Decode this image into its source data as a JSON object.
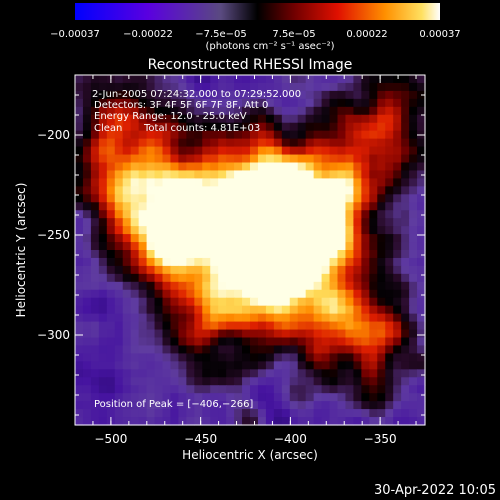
{
  "chart_data": {
    "type": "heatmap",
    "title": "Reconstructed RHESSI Image",
    "xlabel": "Heliocentric X (arcsec)",
    "ylabel": "Heliocentric Y (arcsec)",
    "xlim": [
      -520,
      -325
    ],
    "ylim": [
      -345,
      -170
    ],
    "x_ticks": [
      -500,
      -450,
      -400,
      -350
    ],
    "x_tick_labels": [
      "−500",
      "−450",
      "−400",
      "−350"
    ],
    "y_ticks": [
      -200,
      -250,
      -300
    ],
    "y_tick_labels": [
      "−200",
      "−250",
      "−300"
    ],
    "colorbar": {
      "range": [
        -0.00037,
        0.00037
      ],
      "tick_labels": [
        "−0.00037",
        "−0.00022",
        "−7.5e−05",
        "7.5e−05",
        "0.00022",
        "0.00037"
      ],
      "unit_label": "(photons cm⁻² s⁻¹ asec⁻²)"
    },
    "annotations": {
      "time_range": "2-Jun-2005 07:24:32.000 to 07:29:52.000",
      "detectors": "Detectors: 3F 4F 5F 6F 7F 8F, Att 0",
      "energy_range": "Energy Range: 12.0 - 25.0 keV",
      "clean": "Clean",
      "total_counts": "Total counts: 4.81E+03",
      "peak_position": "Position of Peak = [−406,−266]"
    },
    "peak": [
      -406,
      -266
    ],
    "bright_regions": [
      {
        "x": -470,
        "y": -245,
        "strength": 1.0
      },
      {
        "x": -405,
        "y": -265,
        "strength": 1.0
      },
      {
        "x": -380,
        "y": -235,
        "strength": 0.8
      },
      {
        "x": -425,
        "y": -225,
        "strength": 0.75
      },
      {
        "x": -495,
        "y": -205,
        "strength": 0.6
      },
      {
        "x": -360,
        "y": -300,
        "strength": 0.6
      },
      {
        "x": -440,
        "y": -290,
        "strength": 0.5
      },
      {
        "x": -345,
        "y": -195,
        "strength": 0.45
      }
    ]
  },
  "footer": {
    "timestamp": "30-Apr-2022 10:05"
  }
}
